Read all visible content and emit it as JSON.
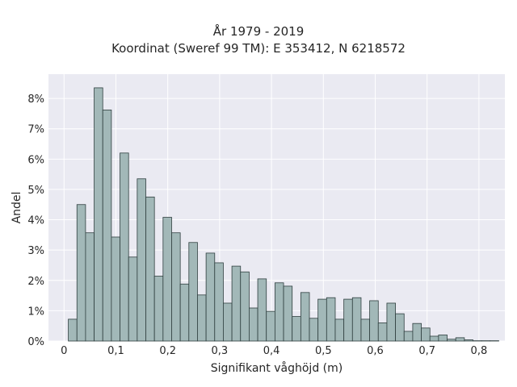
{
  "chart_data": {
    "type": "bar",
    "title_lines": [
      "År 1979 - 2019",
      "Koordinat (Sweref 99 TM): E 353412, N 6218572"
    ],
    "xlabel": "Signifikant våghöjd (m)",
    "ylabel": "Andel",
    "x_ticks": [
      {
        "value": 0,
        "label": "0"
      },
      {
        "value": 0.1,
        "label": "0,1"
      },
      {
        "value": 0.2,
        "label": "0,2"
      },
      {
        "value": 0.3,
        "label": "0,3"
      },
      {
        "value": 0.4,
        "label": "0,4"
      },
      {
        "value": 0.5,
        "label": "0,5"
      },
      {
        "value": 0.6,
        "label": "0,6"
      },
      {
        "value": 0.7,
        "label": "0,7"
      },
      {
        "value": 0.8,
        "label": "0,8"
      }
    ],
    "y_ticks": [
      {
        "value": 0,
        "label": "0%"
      },
      {
        "value": 1,
        "label": "1%"
      },
      {
        "value": 2,
        "label": "2%"
      },
      {
        "value": 3,
        "label": "3%"
      },
      {
        "value": 4,
        "label": "4%"
      },
      {
        "value": 5,
        "label": "5%"
      },
      {
        "value": 6,
        "label": "6%"
      },
      {
        "value": 7,
        "label": "7%"
      },
      {
        "value": 8,
        "label": "8%"
      }
    ],
    "xlim": [
      -0.03,
      0.85
    ],
    "ylim": [
      0,
      8.8
    ],
    "bin_width": 0.0166,
    "bin_start": 0.0083,
    "values": [
      0.72,
      4.5,
      3.57,
      8.35,
      7.62,
      3.43,
      6.2,
      2.77,
      5.35,
      4.75,
      2.14,
      4.08,
      3.57,
      1.88,
      3.25,
      1.52,
      2.9,
      2.58,
      1.25,
      2.47,
      2.28,
      1.09,
      2.05,
      0.98,
      1.92,
      1.81,
      0.81,
      1.6,
      0.75,
      1.38,
      1.43,
      0.72,
      1.38,
      1.43,
      0.72,
      1.33,
      0.6,
      1.25,
      0.9,
      0.32,
      0.58,
      0.43,
      0.16,
      0.2,
      0.06,
      0.11,
      0.04,
      0.01,
      0.01,
      0.01
    ],
    "bar_color": "#a2b8b8",
    "bar_edge": "#2f3f3f",
    "grid": true,
    "background": "#eaeaf2"
  }
}
